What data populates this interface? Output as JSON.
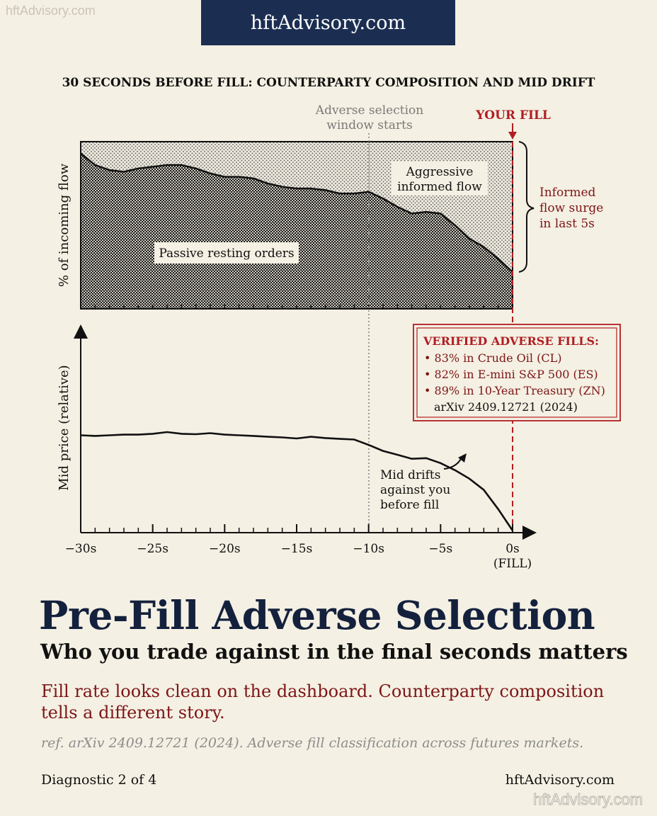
{
  "watermark_top": "hftAdvisory.com",
  "watermark_bottom": "hftAdvisory.com",
  "banner": "hftAdvisory.com",
  "colors": {
    "navy": "#1b2e52",
    "accent_red": "#b01e23",
    "background": "#f4f0e3"
  },
  "chart_data": [
    {
      "type": "area",
      "title": "30 SECONDS BEFORE FILL: COUNTERPARTY COMPOSITION AND MID DRIFT",
      "ylabel": "% of incoming flow",
      "x": [
        -30,
        -29,
        -28,
        -27,
        -26,
        -25,
        -24,
        -23,
        -22,
        -21,
        -20,
        -19,
        -18,
        -17,
        -16,
        -15,
        -14,
        -13,
        -12,
        -11,
        -10,
        -9,
        -8,
        -7,
        -6,
        -5,
        -4,
        -3,
        -2,
        -1,
        0
      ],
      "series": [
        {
          "name": "Passive resting orders",
          "values": [
            93,
            86,
            83,
            82,
            84,
            85,
            86,
            86,
            84,
            81,
            79,
            79,
            78,
            75,
            73,
            72,
            72,
            71,
            69,
            69,
            70,
            66,
            61,
            57,
            58,
            57,
            50,
            42,
            37,
            30,
            22
          ]
        },
        {
          "name": "Aggressive informed flow",
          "values": [
            7,
            14,
            17,
            18,
            16,
            15,
            14,
            14,
            16,
            19,
            21,
            21,
            22,
            25,
            27,
            28,
            28,
            29,
            31,
            31,
            30,
            34,
            39,
            43,
            42,
            43,
            50,
            58,
            63,
            70,
            78
          ]
        }
      ],
      "ylim": [
        0,
        100
      ],
      "annotations": [
        "Adverse selection window starts",
        "YOUR FILL",
        "Informed flow surge in last 5s"
      ]
    },
    {
      "type": "line",
      "xlabel": "",
      "ylabel": "Mid price (relative)",
      "x": [
        -30,
        -29,
        -28,
        -27,
        -26,
        -25,
        -24,
        -23,
        -22,
        -21,
        -20,
        -19,
        -18,
        -17,
        -16,
        -15,
        -14,
        -13,
        -12,
        -11,
        -10,
        -9,
        -8,
        -7,
        -6,
        -5,
        -4,
        -3,
        -2,
        -1,
        0
      ],
      "series": [
        {
          "name": "Mid",
          "values": [
            0.5,
            0.2,
            0.5,
            0.8,
            0.8,
            1.2,
            2.0,
            1.2,
            1.0,
            1.5,
            0.8,
            0.5,
            0.2,
            -0.2,
            -0.5,
            -1.0,
            -0.2,
            -0.8,
            -1.2,
            -1.5,
            -4.0,
            -6.8,
            -8.6,
            -10.5,
            -10.2,
            -12.5,
            -15.8,
            -19.8,
            -25.0,
            -34.0,
            -44.0
          ]
        }
      ],
      "ylim": [
        -45,
        45
      ],
      "xticks": [
        "−30s",
        "−25s",
        "−20s",
        "−15s",
        "−10s",
        "−5s",
        "0s"
      ],
      "xtick_extra": "(FILL)",
      "annotations": [
        "Mid drifts",
        "against you",
        "before fill"
      ]
    }
  ],
  "labels": {
    "window_line1": "Adverse selection",
    "window_line2": "window starts",
    "your_fill": "YOUR FILL",
    "aggressive_line1": "Aggressive",
    "aggressive_line2": "informed flow",
    "passive": "Passive resting orders",
    "surge_line1": "Informed",
    "surge_line2": "flow surge",
    "surge_line3": "in last 5s",
    "mid_line1": "Mid drifts",
    "mid_line2": "against you",
    "mid_line3": "before fill"
  },
  "verified_box": {
    "title": "VERIFIED ADVERSE FILLS:",
    "items": [
      "83% in Crude Oil (CL)",
      "82% in E-mini S&P 500 (ES)",
      "89% in 10-Year Treasury (ZN)"
    ],
    "source": "arXiv 2409.12721 (2024)"
  },
  "headline": "Pre-Fill Adverse Selection",
  "subheadline": "Who you trade against in the final seconds matters",
  "description": "Fill rate looks clean on the dashboard. Counterparty composition tells a different story.",
  "reference": "ref. arXiv 2409.12721 (2024). Adverse fill classification across futures markets.",
  "footer": {
    "left": "Diagnostic 2 of 4",
    "right": "hftAdvisory.com"
  }
}
